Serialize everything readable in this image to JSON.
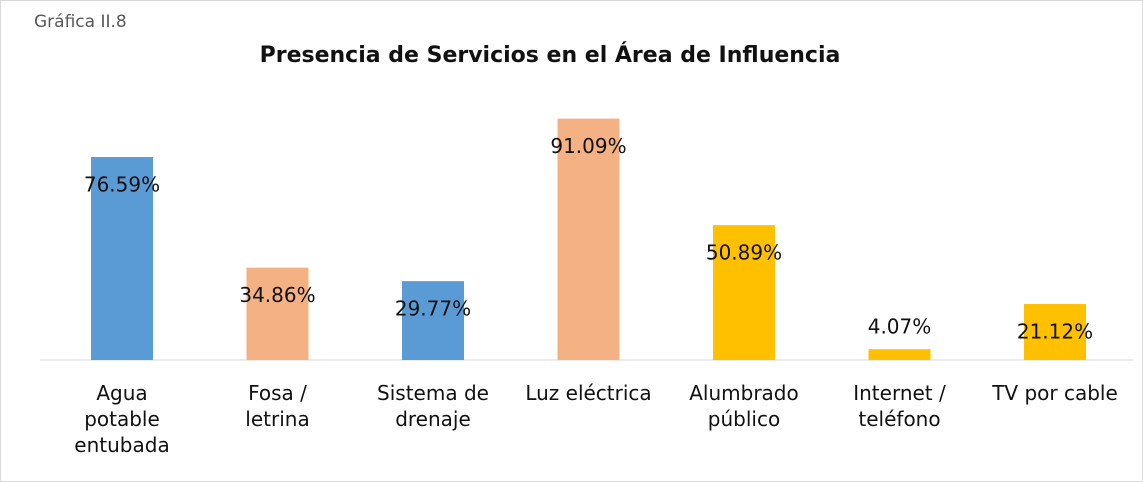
{
  "chart_data": {
    "type": "bar",
    "label": "Gráfica II.8",
    "title": "Presencia de Servicios en el Área de Influencia",
    "categories": [
      "Agua potable entubada",
      "Fosa / letrina",
      "Sistema de drenaje",
      "Luz eléctrica",
      "Alumbrado público",
      "Internet / teléfono",
      "TV por cable"
    ],
    "values": [
      76.59,
      34.86,
      29.77,
      91.09,
      50.89,
      4.07,
      21.12
    ],
    "value_labels": [
      "76.59%",
      "34.86%",
      "29.77%",
      "91.09%",
      "50.89%",
      "4.07%",
      "21.12%"
    ],
    "colors": [
      "#5b9bd5",
      "#f4b183",
      "#5b9bd5",
      "#f4b183",
      "#ffc000",
      "#ffc000",
      "#ffc000"
    ]
  }
}
